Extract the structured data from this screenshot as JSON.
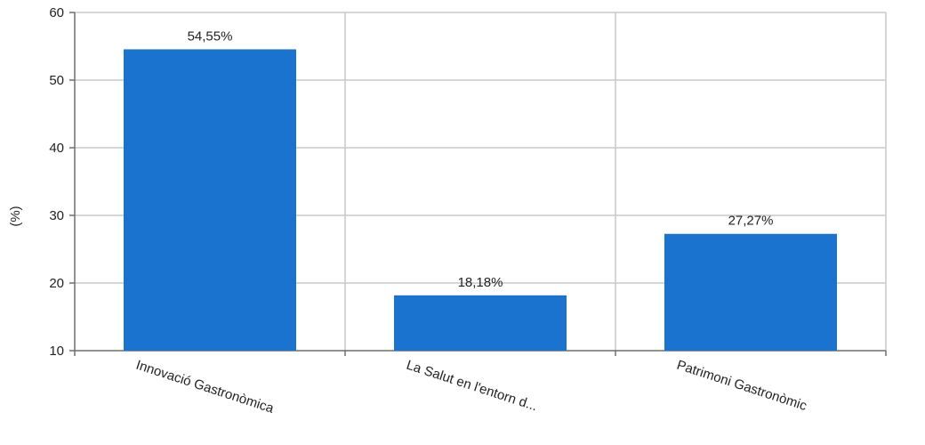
{
  "chart_data": {
    "type": "bar",
    "title": "",
    "xlabel": "",
    "ylabel": "(%)",
    "ylim": [
      10,
      60
    ],
    "yticks": [
      10,
      20,
      30,
      40,
      50,
      60
    ],
    "grid": true,
    "legend": "none",
    "categories": [
      "Innovació Gastronòmica",
      "La Salut en l'entorn d...",
      "Patrimoni Gastronòmic"
    ],
    "values": [
      54.55,
      18.18,
      27.27
    ],
    "data_labels": [
      "54,55%",
      "18,18%",
      "27,27%"
    ],
    "colors": {
      "bar": "#1a73cf",
      "grid": "#c8c8c8",
      "axis": "#6e6e6e"
    }
  }
}
